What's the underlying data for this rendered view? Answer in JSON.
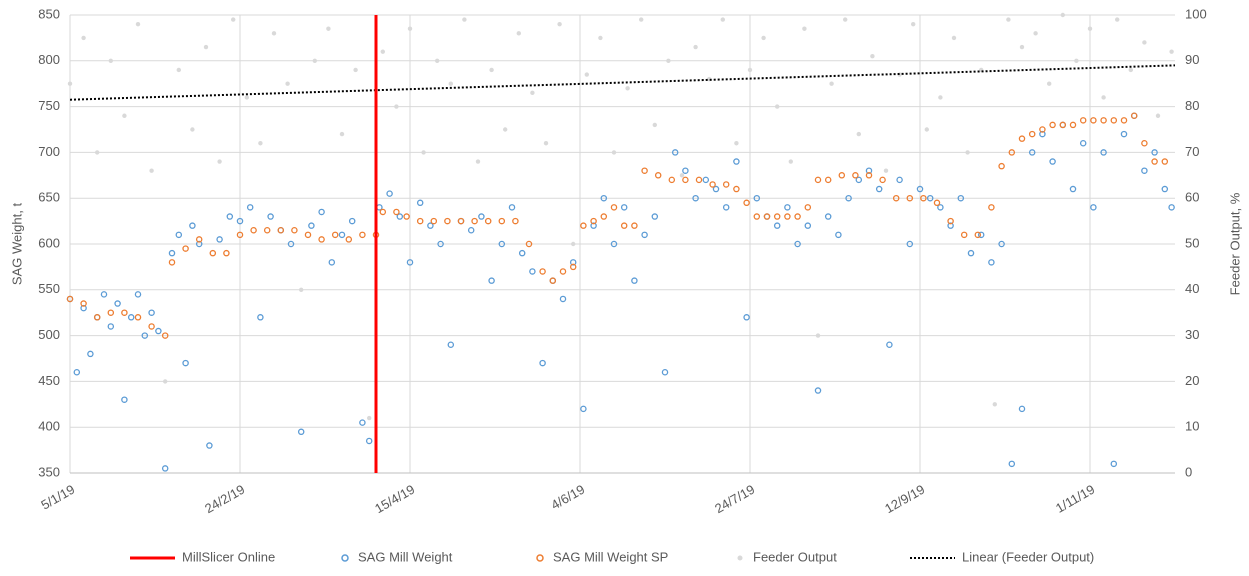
{
  "chart_data": {
    "type": "scatter",
    "y_label": "SAG Weight, t",
    "y2_label": "Feeder Output, %",
    "xlim": [
      5,
      330
    ],
    "ylim": [
      350,
      850
    ],
    "y2lim": [
      0,
      100
    ],
    "xticks": [
      {
        "value": 5,
        "label": "5/1/19"
      },
      {
        "value": 55,
        "label": "24/2/19"
      },
      {
        "value": 105,
        "label": "15/4/19"
      },
      {
        "value": 155,
        "label": "4/6/19"
      },
      {
        "value": 205,
        "label": "24/7/19"
      },
      {
        "value": 255,
        "label": "12/9/19"
      },
      {
        "value": 305,
        "label": "1/11/19"
      }
    ],
    "yticks": [
      350,
      400,
      450,
      500,
      550,
      600,
      650,
      700,
      750,
      800,
      850
    ],
    "y2ticks": [
      0,
      10,
      20,
      30,
      40,
      50,
      60,
      70,
      80,
      90,
      100
    ],
    "grid": true,
    "legend": "bottom",
    "series": [
      {
        "name": "MillSlicer Online",
        "mark": "line",
        "style": "solid",
        "color": "#ff0000",
        "x": [
          95,
          95
        ],
        "values": [
          350,
          850
        ]
      },
      {
        "name": "SAG Mill Weight",
        "mark": "circle",
        "color": "#5b9bd5",
        "x": [
          5,
          7,
          9,
          11,
          13,
          15,
          17,
          19,
          21,
          23,
          25,
          27,
          29,
          31,
          33,
          35,
          37,
          39,
          41,
          43,
          46,
          49,
          52,
          55,
          58,
          61,
          64,
          67,
          70,
          73,
          76,
          79,
          82,
          85,
          88,
          91,
          93,
          96,
          99,
          102,
          105,
          108,
          111,
          114,
          117,
          120,
          123,
          126,
          129,
          132,
          135,
          138,
          141,
          144,
          147,
          150,
          153,
          156,
          159,
          162,
          165,
          168,
          171,
          174,
          177,
          180,
          183,
          186,
          189,
          192,
          195,
          198,
          201,
          204,
          207,
          210,
          213,
          216,
          219,
          222,
          225,
          228,
          231,
          234,
          237,
          240,
          243,
          246,
          249,
          252,
          255,
          258,
          261,
          264,
          267,
          270,
          273,
          276,
          279,
          282,
          285,
          288,
          291,
          294,
          297,
          300,
          303,
          306,
          309,
          312,
          315,
          318,
          321,
          324,
          327,
          329
        ],
        "values": [
          540,
          460,
          530,
          480,
          520,
          545,
          510,
          535,
          430,
          520,
          545,
          500,
          525,
          505,
          355,
          590,
          610,
          470,
          620,
          600,
          380,
          605,
          630,
          625,
          640,
          520,
          630,
          615,
          600,
          395,
          620,
          635,
          580,
          610,
          625,
          405,
          385,
          640,
          655,
          630,
          580,
          645,
          620,
          600,
          490,
          625,
          615,
          630,
          560,
          600,
          640,
          590,
          570,
          470,
          560,
          540,
          580,
          420,
          620,
          650,
          600,
          640,
          560,
          610,
          630,
          460,
          700,
          680,
          650,
          670,
          660,
          640,
          690,
          520,
          650,
          630,
          620,
          640,
          600,
          620,
          440,
          630,
          610,
          650,
          670,
          680,
          660,
          490,
          670,
          600,
          660,
          650,
          640,
          620,
          650,
          590,
          610,
          580,
          600,
          360,
          420,
          700,
          720,
          690,
          730,
          660,
          710,
          640,
          700,
          360,
          720,
          740,
          680,
          700,
          660,
          640
        ]
      },
      {
        "name": "SAG Mill Weight SP",
        "mark": "circle",
        "color": "#ed7d31",
        "x": [
          5,
          9,
          13,
          17,
          21,
          25,
          29,
          33,
          35,
          39,
          43,
          47,
          51,
          55,
          59,
          63,
          67,
          71,
          75,
          79,
          83,
          87,
          91,
          95,
          97,
          101,
          104,
          108,
          112,
          116,
          120,
          124,
          128,
          132,
          136,
          140,
          144,
          147,
          150,
          153,
          156,
          159,
          162,
          165,
          168,
          171,
          174,
          178,
          182,
          186,
          190,
          194,
          198,
          201,
          204,
          207,
          210,
          213,
          216,
          219,
          222,
          225,
          228,
          232,
          236,
          240,
          244,
          248,
          252,
          256,
          260,
          264,
          268,
          272,
          276,
          279,
          282,
          285,
          288,
          291,
          294,
          297,
          300,
          303,
          306,
          309,
          312,
          315,
          318,
          321,
          324,
          327
        ],
        "values": [
          540,
          535,
          520,
          525,
          525,
          520,
          510,
          500,
          580,
          595,
          605,
          590,
          590,
          610,
          615,
          615,
          615,
          615,
          610,
          605,
          610,
          605,
          610,
          610,
          635,
          635,
          630,
          625,
          625,
          625,
          625,
          625,
          625,
          625,
          625,
          600,
          570,
          560,
          570,
          575,
          620,
          625,
          630,
          640,
          620,
          620,
          680,
          675,
          670,
          670,
          670,
          665,
          665,
          660,
          645,
          630,
          630,
          630,
          630,
          630,
          640,
          670,
          670,
          675,
          675,
          675,
          670,
          650,
          650,
          650,
          645,
          625,
          610,
          610,
          640,
          685,
          700,
          715,
          720,
          725,
          730,
          730,
          730,
          735,
          735,
          735,
          735,
          735,
          740,
          710,
          690,
          690
        ]
      },
      {
        "name": "Feeder Output",
        "mark": "dot",
        "color": "#d9d9d9",
        "axis": "y2",
        "x": [
          5,
          9,
          13,
          17,
          21,
          25,
          29,
          33,
          37,
          41,
          45,
          49,
          53,
          57,
          61,
          65,
          69,
          73,
          77,
          81,
          85,
          89,
          93,
          97,
          101,
          105,
          109,
          113,
          117,
          121,
          125,
          129,
          133,
          137,
          141,
          145,
          149,
          153,
          157,
          161,
          165,
          169,
          173,
          177,
          181,
          185,
          189,
          193,
          197,
          201,
          205,
          209,
          213,
          217,
          221,
          225,
          229,
          233,
          237,
          241,
          245,
          249,
          253,
          257,
          261,
          265,
          269,
          273,
          277,
          281,
          285,
          289,
          293,
          297,
          301,
          305,
          309,
          313,
          317,
          321,
          325,
          329
        ],
        "values": [
          85,
          95,
          70,
          90,
          78,
          98,
          66,
          20,
          88,
          75,
          93,
          68,
          99,
          82,
          72,
          96,
          85,
          40,
          90,
          97,
          74,
          88,
          12,
          92,
          80,
          97,
          70,
          90,
          85,
          99,
          68,
          88,
          75,
          96,
          83,
          72,
          98,
          50,
          87,
          95,
          70,
          84,
          99,
          76,
          90,
          65,
          93,
          86,
          99,
          72,
          88,
          95,
          80,
          68,
          97,
          30,
          85,
          99,
          74,
          91,
          66,
          87,
          98,
          75,
          82,
          95,
          70,
          88,
          15,
          99,
          93,
          96,
          85,
          100,
          90,
          97,
          82,
          99,
          88,
          94,
          78,
          92
        ]
      },
      {
        "name": "Linear (Feeder Output)",
        "mark": "line",
        "style": "dotted",
        "color": "#000000",
        "axis": "y2",
        "x": [
          5,
          330
        ],
        "values": [
          81.5,
          89
        ]
      }
    ]
  }
}
